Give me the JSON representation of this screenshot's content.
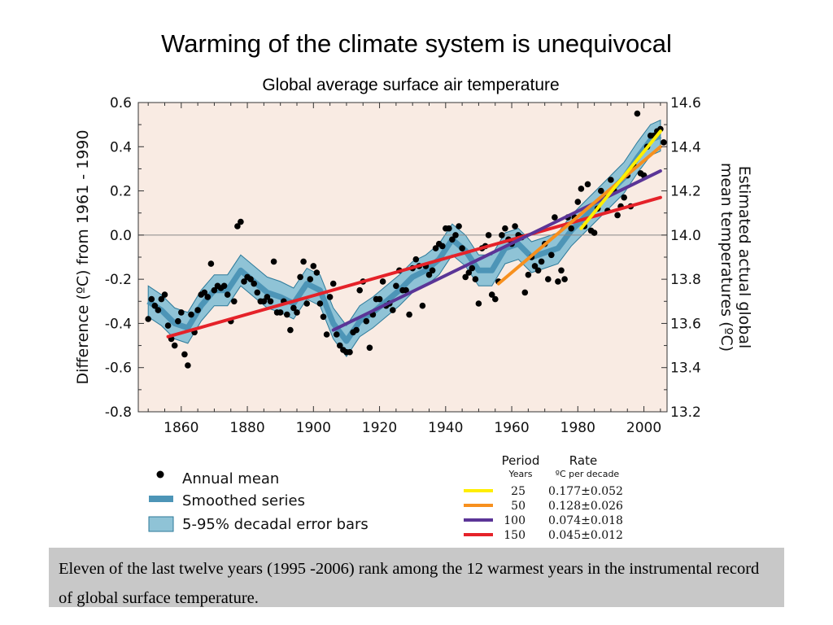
{
  "slide": {
    "title": "Warming of the climate system is unequivocal",
    "caption": "Eleven of the last twelve years (1995 -2006) rank among the 12 warmest years in the instrumental record of global surface temperature."
  },
  "colors": {
    "plot_background": "#f9ebe3",
    "dots": "#000000",
    "smoothed": "#4d95b7",
    "error_band_fill": "#8fc3d6",
    "error_band_edge": "#2d7a9a",
    "trend_25": "#ffee00",
    "trend_50": "#f7901e",
    "trend_100": "#5b3597",
    "trend_150": "#e52229",
    "caption_box": "#c8c8c8"
  },
  "chart_data": {
    "type": "scatter",
    "title": "Global average surface air temperature",
    "ylabel": "Difference (ºC) from 1961 - 1990",
    "y2label_line1": "Estimated actual global",
    "y2label_line2": "mean temperatures (ºC)",
    "xlim": [
      1847,
      2007
    ],
    "ylim": [
      -0.8,
      0.6
    ],
    "x_ticks": [
      1860,
      1880,
      1900,
      1920,
      1940,
      1960,
      1980,
      2000
    ],
    "y_ticks": [
      0.6,
      0.4,
      0.2,
      0.0,
      -0.2,
      -0.4,
      -0.6,
      -0.8
    ],
    "y_tick_labels": [
      "0.6",
      "0.4",
      "0.2",
      "0.0",
      "-0.2",
      "-0.4",
      "-0.6",
      "-0.8"
    ],
    "y2_ticks": [
      14.6,
      14.4,
      14.2,
      14.0,
      13.8,
      13.6,
      13.4,
      13.2
    ],
    "y2_tick_labels": [
      "14.6",
      "14.4",
      "14.2",
      "14.0",
      "13.8",
      "13.6",
      "13.4",
      "13.2"
    ],
    "y2_offset": 14.0,
    "zero_line": true,
    "annual_mean": {
      "name": "Annual mean",
      "x": [
        1850,
        1851,
        1852,
        1853,
        1854,
        1855,
        1856,
        1857,
        1858,
        1859,
        1860,
        1861,
        1862,
        1863,
        1864,
        1865,
        1866,
        1867,
        1868,
        1869,
        1870,
        1871,
        1872,
        1873,
        1874,
        1875,
        1876,
        1877,
        1878,
        1879,
        1880,
        1881,
        1882,
        1883,
        1884,
        1885,
        1886,
        1887,
        1888,
        1889,
        1890,
        1891,
        1892,
        1893,
        1894,
        1895,
        1896,
        1897,
        1898,
        1899,
        1900,
        1901,
        1902,
        1903,
        1904,
        1905,
        1906,
        1907,
        1908,
        1909,
        1910,
        1911,
        1912,
        1913,
        1914,
        1915,
        1916,
        1917,
        1918,
        1919,
        1920,
        1921,
        1922,
        1923,
        1924,
        1925,
        1926,
        1927,
        1928,
        1929,
        1930,
        1931,
        1932,
        1933,
        1934,
        1935,
        1936,
        1937,
        1938,
        1939,
        1940,
        1941,
        1942,
        1943,
        1944,
        1945,
        1946,
        1947,
        1948,
        1949,
        1950,
        1951,
        1952,
        1953,
        1954,
        1955,
        1956,
        1957,
        1958,
        1959,
        1960,
        1961,
        1962,
        1963,
        1964,
        1965,
        1966,
        1967,
        1968,
        1969,
        1970,
        1971,
        1972,
        1973,
        1974,
        1975,
        1976,
        1977,
        1978,
        1979,
        1980,
        1981,
        1982,
        1983,
        1984,
        1985,
        1986,
        1987,
        1988,
        1989,
        1990,
        1991,
        1992,
        1993,
        1994,
        1995,
        1996,
        1997,
        1998,
        1999,
        2000,
        2001,
        2002,
        2003,
        2004,
        2005,
        2006
      ],
      "y": [
        -0.38,
        -0.29,
        -0.32,
        -0.34,
        -0.29,
        -0.27,
        -0.41,
        -0.47,
        -0.5,
        -0.39,
        -0.35,
        -0.54,
        -0.59,
        -0.36,
        -0.44,
        -0.34,
        -0.27,
        -0.26,
        -0.28,
        -0.13,
        -0.25,
        -0.23,
        -0.24,
        -0.23,
        -0.27,
        -0.39,
        -0.3,
        0.04,
        0.06,
        -0.21,
        -0.19,
        -0.2,
        -0.22,
        -0.26,
        -0.3,
        -0.3,
        -0.28,
        -0.3,
        -0.12,
        -0.35,
        -0.35,
        -0.3,
        -0.36,
        -0.43,
        -0.33,
        -0.35,
        -0.19,
        -0.12,
        -0.31,
        -0.2,
        -0.14,
        -0.17,
        -0.31,
        -0.37,
        -0.45,
        -0.28,
        -0.22,
        -0.45,
        -0.5,
        -0.52,
        -0.53,
        -0.53,
        -0.44,
        -0.43,
        -0.25,
        -0.21,
        -0.39,
        -0.51,
        -0.36,
        -0.29,
        -0.29,
        -0.21,
        -0.32,
        -0.31,
        -0.34,
        -0.23,
        -0.16,
        -0.25,
        -0.25,
        -0.36,
        -0.15,
        -0.11,
        -0.14,
        -0.32,
        -0.14,
        -0.18,
        -0.16,
        -0.06,
        -0.04,
        -0.05,
        0.03,
        0.03,
        -0.02,
        0.0,
        0.04,
        -0.06,
        -0.19,
        -0.17,
        -0.15,
        -0.2,
        -0.31,
        -0.06,
        -0.05,
        0.0,
        -0.27,
        -0.29,
        -0.21,
        0.0,
        0.03,
        -0.02,
        -0.04,
        0.04,
        0.0,
        -0.01,
        -0.26,
        -0.18,
        -0.1,
        -0.14,
        -0.16,
        -0.12,
        -0.04,
        -0.2,
        -0.09,
        0.08,
        -0.21,
        -0.16,
        -0.2,
        0.08,
        0.03,
        0.08,
        0.15,
        0.21,
        0.04,
        0.23,
        0.02,
        0.01,
        0.12,
        0.2,
        0.17,
        0.11,
        0.25,
        0.2,
        0.09,
        0.13,
        0.17,
        0.27,
        0.13,
        0.31,
        0.55,
        0.28,
        0.27,
        0.4,
        0.45,
        0.45,
        0.47,
        0.48,
        0.42
      ]
    },
    "smoothed_series": {
      "name": "Smoothed series",
      "x": [
        1850,
        1854,
        1858,
        1862,
        1866,
        1870,
        1874,
        1878,
        1882,
        1886,
        1890,
        1894,
        1898,
        1902,
        1906,
        1910,
        1914,
        1918,
        1922,
        1926,
        1930,
        1934,
        1938,
        1942,
        1946,
        1950,
        1954,
        1958,
        1962,
        1966,
        1970,
        1974,
        1978,
        1982,
        1986,
        1990,
        1994,
        1998,
        2002,
        2005
      ],
      "y": [
        -0.3,
        -0.34,
        -0.4,
        -0.42,
        -0.32,
        -0.25,
        -0.25,
        -0.16,
        -0.21,
        -0.26,
        -0.28,
        -0.31,
        -0.22,
        -0.25,
        -0.4,
        -0.48,
        -0.39,
        -0.35,
        -0.3,
        -0.25,
        -0.19,
        -0.16,
        -0.11,
        -0.02,
        -0.07,
        -0.16,
        -0.16,
        -0.06,
        -0.04,
        -0.1,
        -0.08,
        -0.06,
        0.02,
        0.08,
        0.14,
        0.2,
        0.26,
        0.35,
        0.43,
        0.45
      ]
    },
    "error_band": {
      "name": "5-95% decadal error bars",
      "halfwidth": 0.07
    },
    "trends": {
      "header_period": "Period",
      "header_period_sub": "Years",
      "header_rate": "Rate",
      "header_rate_sub": "ºC  per decade",
      "lines": [
        {
          "period": "25",
          "rate": "0.177±0.052",
          "x": [
            1981,
            2005
          ],
          "y": [
            0.03,
            0.47
          ]
        },
        {
          "period": "50",
          "rate": "0.128±0.026",
          "x": [
            1956,
            2005
          ],
          "y": [
            -0.22,
            0.4
          ]
        },
        {
          "period": "100",
          "rate": "0.074±0.018",
          "x": [
            1906,
            2005
          ],
          "y": [
            -0.43,
            0.29
          ]
        },
        {
          "period": "150",
          "rate": "0.045±0.012",
          "x": [
            1856,
            2005
          ],
          "y": [
            -0.46,
            0.17
          ]
        }
      ]
    },
    "legend_position": "bottom-left"
  }
}
